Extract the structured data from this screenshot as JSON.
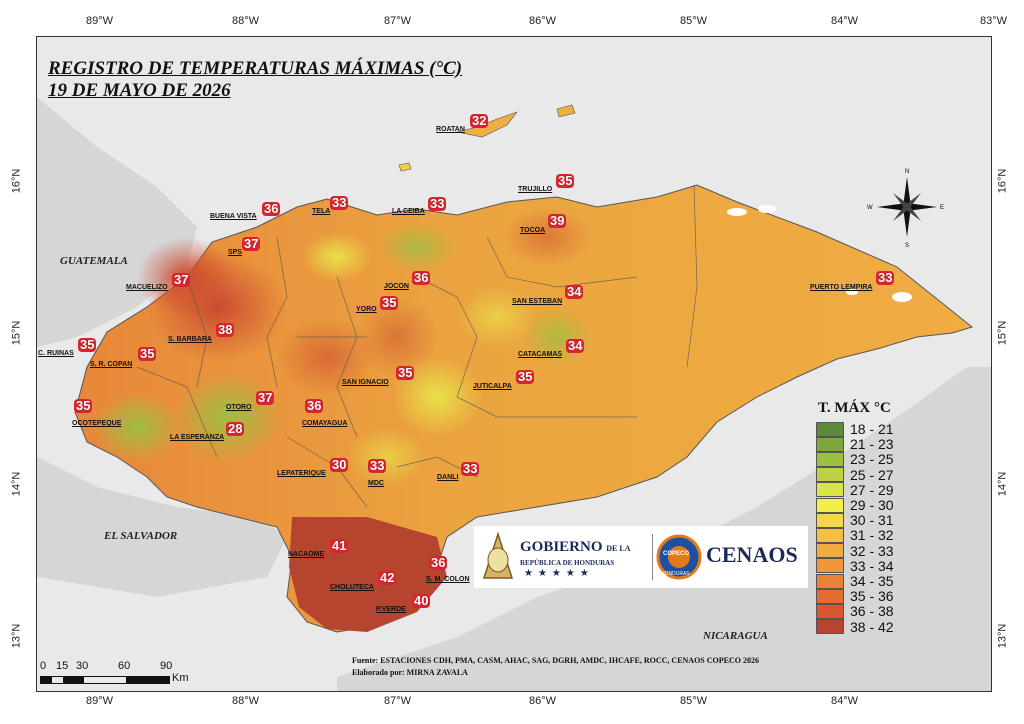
{
  "title_line1": "REGISTRO DE TEMPERATURAS MÁXIMAS (°C)",
  "title_line2": "19 DE MAYO DE 2026",
  "lon_ticks": [
    "89°W",
    "88°W",
    "87°W",
    "86°W",
    "85°W",
    "84°W",
    "83°W"
  ],
  "lat_ticks": [
    "16°N",
    "15°N",
    "14°N",
    "13°N"
  ],
  "countries": {
    "guatemala": "GUATEMALA",
    "el_salvador": "EL SALVADOR",
    "nicaragua": "NICARAGUA"
  },
  "stations": [
    {
      "name": "ROATAN",
      "value": "32"
    },
    {
      "name": "TRUJILLO",
      "value": "35"
    },
    {
      "name": "TELA",
      "value": "33"
    },
    {
      "name": "LA CEIBA",
      "value": "33"
    },
    {
      "name": "BUENA VISTA",
      "value": "36"
    },
    {
      "name": "SPS",
      "value": "37"
    },
    {
      "name": "TOCOA",
      "value": "39"
    },
    {
      "name": "MACUELIZO",
      "value": "37"
    },
    {
      "name": "JOCON",
      "value": "36"
    },
    {
      "name": "YORO",
      "value": "35"
    },
    {
      "name": "SAN ESTEBAN",
      "value": "34"
    },
    {
      "name": "PUERTO LEMPIRA",
      "value": "33"
    },
    {
      "name": "S. BARBARA",
      "value": "38"
    },
    {
      "name": "C. RUINAS",
      "value": "35"
    },
    {
      "name": "S. R. COPAN",
      "value": "35"
    },
    {
      "name": "CATACAMAS",
      "value": "34"
    },
    {
      "name": "SAN IGNACIO",
      "value": "35"
    },
    {
      "name": "JUTICALPA",
      "value": "35"
    },
    {
      "name": "OTORO",
      "value": "37"
    },
    {
      "name": "OCOTEPEQUE",
      "value": "35"
    },
    {
      "name": "COMAYAGUA",
      "value": "36"
    },
    {
      "name": "LA ESPERANZA",
      "value": "28"
    },
    {
      "name": "LEPATERIQUE",
      "value": "30"
    },
    {
      "name": "MDC",
      "value": "33"
    },
    {
      "name": "DANLI",
      "value": "33"
    },
    {
      "name": "NACAOME",
      "value": "41"
    },
    {
      "name": "S. M. COLON",
      "value": "36"
    },
    {
      "name": "CHOLUTECA",
      "value": "42"
    },
    {
      "name": "P.VERDE",
      "value": "40"
    }
  ],
  "legend": {
    "title": "T. MÁX °C",
    "items": [
      {
        "label": "18 - 21",
        "color": "#5a8a3a"
      },
      {
        "label": "21 - 23",
        "color": "#7aa83e"
      },
      {
        "label": "23 - 25",
        "color": "#9dbf42"
      },
      {
        "label": "25 - 27",
        "color": "#bcd244"
      },
      {
        "label": "27 - 29",
        "color": "#d9e446"
      },
      {
        "label": "29 - 30",
        "color": "#f2ef4c"
      },
      {
        "label": "30 - 31",
        "color": "#f4d64a"
      },
      {
        "label": "31 - 32",
        "color": "#f3c045"
      },
      {
        "label": "32 - 33",
        "color": "#f1ab40"
      },
      {
        "label": "33 - 34",
        "color": "#ef973b"
      },
      {
        "label": "34 - 35",
        "color": "#ea8236"
      },
      {
        "label": "35 - 36",
        "color": "#e56d33"
      },
      {
        "label": "36 - 38",
        "color": "#dd5530"
      },
      {
        "label": "38 - 42",
        "color": "#b5452f"
      }
    ]
  },
  "logos": {
    "gobierno": "GOBIERNO",
    "de_la": "DE LA",
    "republica": "REPÚBLICA DE HONDURAS",
    "copeco": "COPECO",
    "honduras": "HONDURAS",
    "cenaos": "CENAOS"
  },
  "footer": {
    "source": "Fuente: ESTACIONES CDH, PMA, CASM, AHAC, SAG, DGRH, AMDC, IHCAFE, ROCC, CENAOS COPECO 2026",
    "author": "Elaborado por:  MIRNA ZAVALA"
  },
  "scale": {
    "ticks": [
      "0",
      "15",
      "30",
      "60",
      "90"
    ],
    "unit": "Km"
  }
}
